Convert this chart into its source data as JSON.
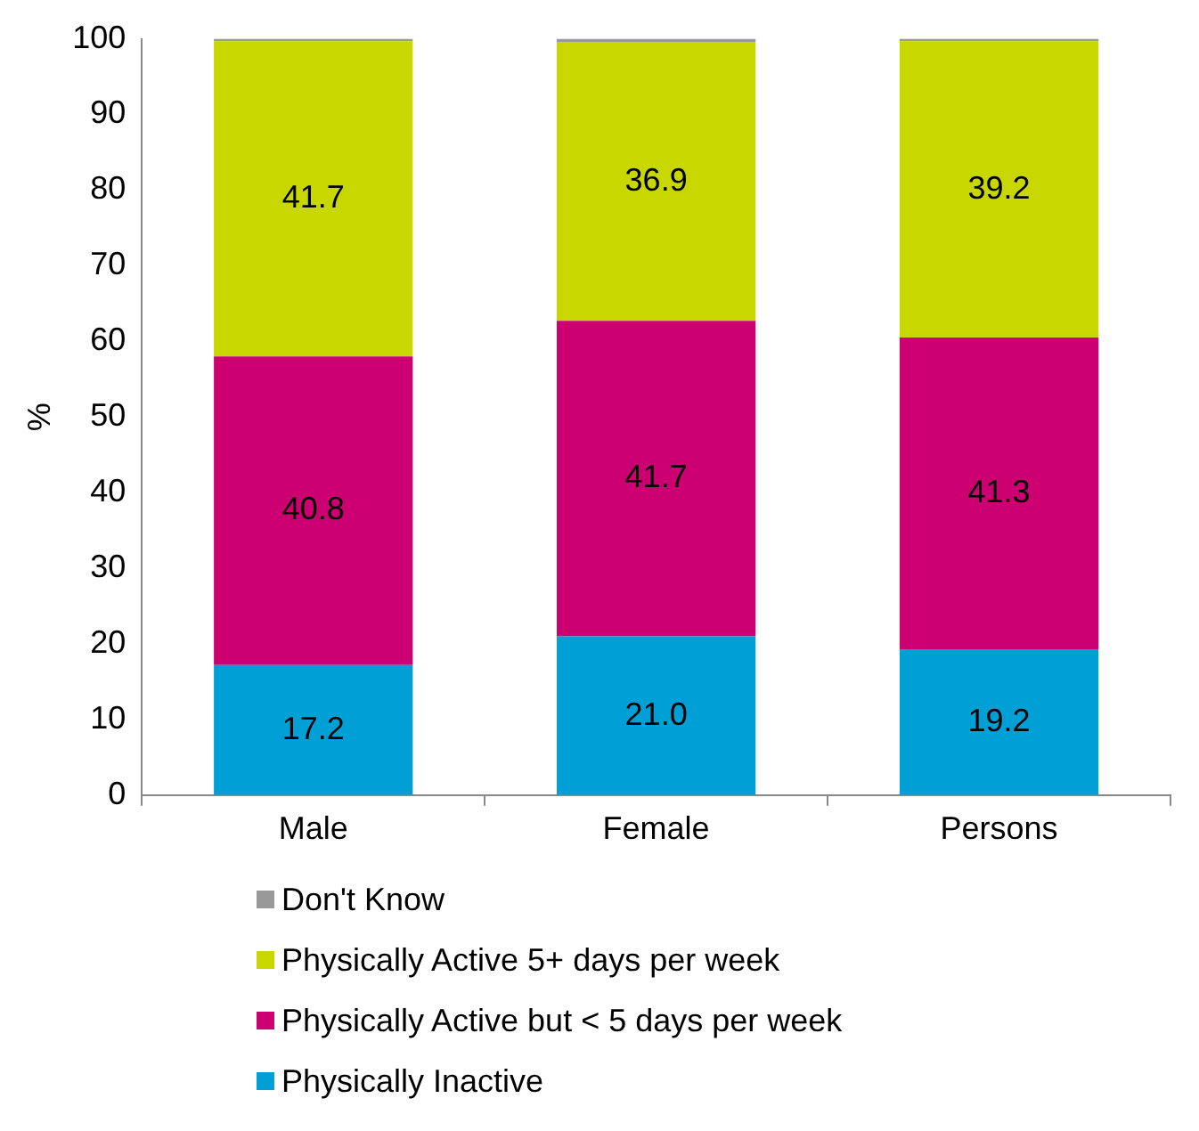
{
  "chart_data": {
    "type": "bar",
    "stacked": true,
    "categories": [
      "Male",
      "Female",
      "Persons"
    ],
    "ylabel": "%",
    "ylim": [
      0,
      100
    ],
    "yticks": [
      0,
      10,
      20,
      30,
      40,
      50,
      60,
      70,
      80,
      90,
      100
    ],
    "grid": false,
    "legend": "bottom",
    "series": [
      {
        "name": "Physically Inactive",
        "color": "#00a0d6",
        "values": [
          17.2,
          21.0,
          19.2
        ],
        "value_labels": [
          "17.2",
          "21.0",
          "19.2"
        ]
      },
      {
        "name": "Physically Active but < 5 days per week",
        "color": "#cc0070",
        "values": [
          40.8,
          41.7,
          41.3
        ],
        "value_labels": [
          "40.8",
          "41.7",
          "41.3"
        ]
      },
      {
        "name": "Physically Active 5+ days per week",
        "color": "#c8d700",
        "values": [
          41.7,
          36.9,
          39.2
        ],
        "value_labels": [
          "41.7",
          "36.9",
          "39.2"
        ]
      },
      {
        "name": "Don't Know",
        "color": "#999999",
        "values": [
          0.3,
          0.4,
          0.3
        ],
        "value_labels": [
          null,
          null,
          null
        ]
      }
    ]
  }
}
